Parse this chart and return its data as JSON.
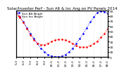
{
  "title": "Solar/Inverter Perf - Sun Alt & Inc Ang on PV Panels 2014",
  "legend": [
    "Sun Alt Angle",
    "Sun Inc Angle"
  ],
  "line_colors": [
    "blue",
    "red"
  ],
  "x_labels": [
    "5:3",
    "6:0",
    "6:3",
    "7:0",
    "7:3",
    "8:0",
    "8:3",
    "9:0",
    "9:3",
    "10:0",
    "10:3",
    "11:0",
    "11:3",
    "12:0",
    "12:3",
    "13:0",
    "13:3",
    "14:0",
    "14:3",
    "15:0",
    "15:3",
    "16:0",
    "16:3",
    "17:0",
    "17:3",
    "18:0",
    "18:3"
  ],
  "x_values": [
    0,
    1,
    2,
    3,
    4,
    5,
    6,
    7,
    8,
    9,
    10,
    11,
    12,
    13,
    14,
    15,
    16,
    17,
    18,
    19,
    20,
    21,
    22,
    23,
    24,
    25,
    26
  ],
  "blue_values": [
    88,
    78,
    68,
    57,
    46,
    36,
    26,
    17,
    10,
    5,
    2,
    1,
    1,
    2,
    5,
    10,
    17,
    26,
    36,
    46,
    57,
    68,
    78,
    86,
    89,
    88,
    85
  ],
  "red_values": [
    85,
    77,
    67,
    55,
    43,
    33,
    27,
    24,
    24,
    27,
    30,
    33,
    34,
    34,
    33,
    30,
    26,
    22,
    20,
    19,
    20,
    22,
    26,
    31,
    38,
    46,
    55
  ],
  "ylim": [
    0,
    90
  ],
  "right_yticks": [
    0,
    10,
    20,
    30,
    40,
    50,
    60,
    70,
    80,
    90
  ],
  "right_yticklabels": [
    "0",
    "10",
    "20",
    "30",
    "40",
    "50",
    "60",
    "70",
    "80",
    "90"
  ],
  "background_color": "#ffffff",
  "grid_color": "#bbbbbb",
  "title_fontsize": 4.0,
  "tick_fontsize": 3.2,
  "legend_fontsize": 3.2
}
